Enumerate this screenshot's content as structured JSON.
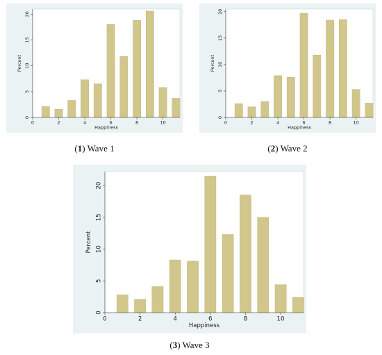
{
  "chart_data": [
    {
      "type": "bar",
      "caption_num": "1",
      "caption_text": "Wave 1",
      "xlabel": "Happiness",
      "ylabel": "Percent",
      "x": [
        1,
        2,
        3,
        4,
        5,
        6,
        7,
        8,
        9,
        10,
        11
      ],
      "values": [
        2.1,
        1.6,
        3.3,
        7.3,
        6.5,
        18.0,
        11.8,
        18.8,
        20.6,
        5.8,
        3.7
      ],
      "xlim": [
        0,
        11.3
      ],
      "ylim": [
        0,
        21
      ],
      "xticks": [
        "0",
        "2",
        "4",
        "6",
        "8",
        "10"
      ],
      "yticks": [
        "0",
        "5",
        "10",
        "15",
        "20"
      ],
      "colors": {
        "bar": "#d1c68c",
        "bar_edge": "#c2b678",
        "plot_bg": "#ffffff",
        "frame": "#eaf2f3"
      },
      "grid": false
    },
    {
      "type": "bar",
      "caption_num": "2",
      "caption_text": "Wave 2",
      "xlabel": "Happiness",
      "ylabel": "Percent",
      "x": [
        1,
        2,
        3,
        4,
        5,
        6,
        7,
        8,
        9,
        10,
        11
      ],
      "values": [
        2.6,
        2.0,
        3.0,
        7.9,
        7.6,
        19.7,
        11.8,
        18.4,
        18.5,
        5.3,
        2.7
      ],
      "xlim": [
        0,
        11.3
      ],
      "ylim": [
        0,
        20.5
      ],
      "xticks": [
        "0",
        "2",
        "4",
        "6",
        "8",
        "10"
      ],
      "yticks": [
        "0",
        "5",
        "10",
        "15",
        "20"
      ],
      "colors": {
        "bar": "#d1c68c",
        "bar_edge": "#c2b678",
        "plot_bg": "#ffffff",
        "frame": "#eaf2f3"
      },
      "grid": false
    },
    {
      "type": "bar",
      "caption_num": "3",
      "caption_text": "Wave 3",
      "xlabel": "Happiness",
      "ylabel": "Percent",
      "x": [
        1,
        2,
        3,
        4,
        5,
        6,
        7,
        8,
        9,
        10,
        11
      ],
      "values": [
        2.8,
        2.1,
        4.1,
        8.3,
        8.1,
        21.5,
        12.3,
        18.5,
        15.0,
        4.4,
        2.4
      ],
      "xlim": [
        0,
        11.3
      ],
      "ylim": [
        0,
        22.2
      ],
      "xticks": [
        "0",
        "2",
        "4",
        "6",
        "8",
        "10"
      ],
      "yticks": [
        "0",
        "5",
        "10",
        "15",
        "20"
      ],
      "colors": {
        "bar": "#d1c68c",
        "bar_edge": "#c2b678",
        "plot_bg": "#ffffff",
        "frame": "#eaf2f3"
      },
      "grid": false
    }
  ]
}
